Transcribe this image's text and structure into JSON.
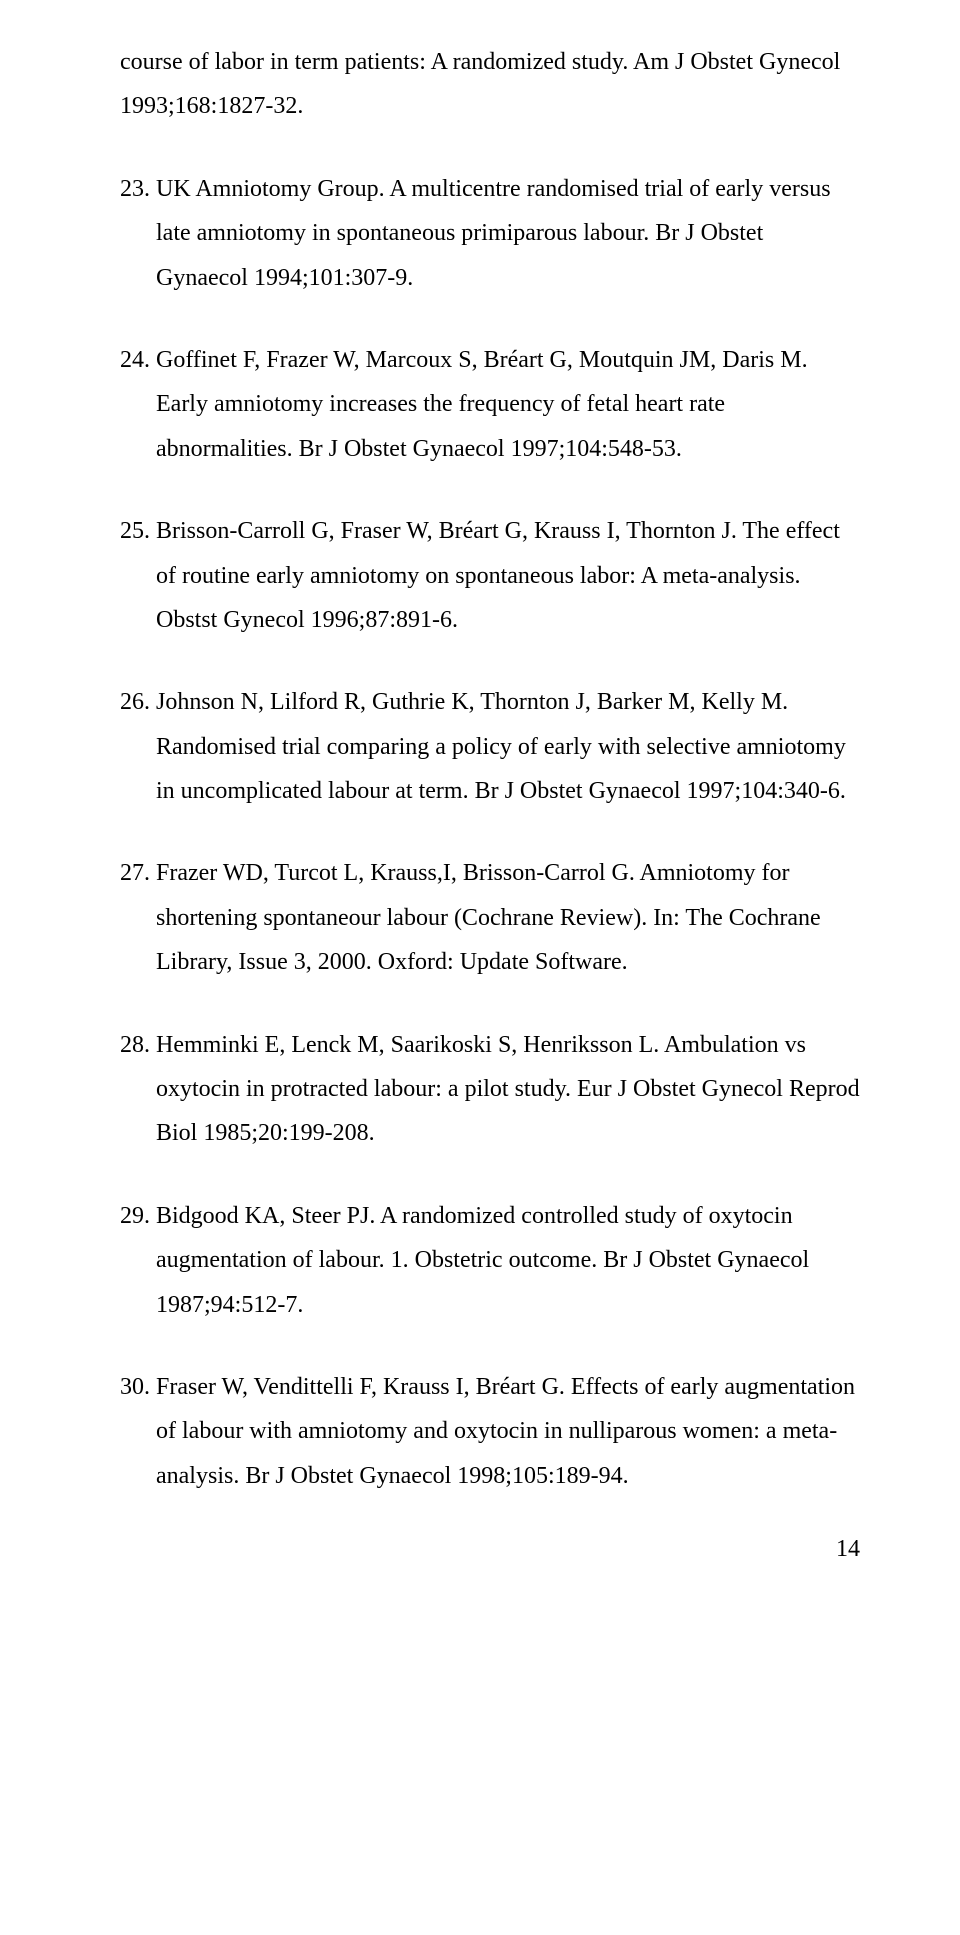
{
  "references": [
    {
      "num": "",
      "text": "course of labor in term patients: A randomized study. Am J Obstet Gynecol 1993;168:1827-32.",
      "continued": true
    },
    {
      "num": "23.",
      "text": "UK Amniotomy Group. A multicentre randomised trial of early versus late amniotomy in spontaneous primiparous labour. Br J Obstet Gynaecol 1994;101:307-9."
    },
    {
      "num": "24.",
      "text": "Goffinet F, Frazer W, Marcoux S, Bréart G, Moutquin JM, Daris M. Early amniotomy increases the frequency of fetal heart rate abnormalities. Br J Obstet Gynaecol 1997;104:548-53."
    },
    {
      "num": "25.",
      "text": "Brisson-Carroll G, Fraser W, Bréart G, Krauss I, Thornton J. The effect of routine early amniotomy on spontaneous labor: A meta-analysis. Obstst Gynecol 1996;87:891-6."
    },
    {
      "num": "26.",
      "text": "Johnson N, Lilford R, Guthrie K, Thornton J, Barker M, Kelly M. Randomised trial comparing a policy of early with selective amniotomy in uncomplicated labour at term. Br J Obstet Gynaecol 1997;104:340-6."
    },
    {
      "num": "27.",
      "text": "Frazer WD, Turcot L, Krauss,I, Brisson-Carrol G. Amniotomy for shortening spontaneour labour (Cochrane Review). In: The Cochrane Library, Issue 3, 2000. Oxford: Update Software."
    },
    {
      "num": "28.",
      "text": "Hemminki E, Lenck M, Saarikoski S, Henriksson L. Ambulation vs oxytocin in protracted labour: a pilot study. Eur J Obstet Gynecol Reprod Biol 1985;20:199-208."
    },
    {
      "num": "29.",
      "text": "Bidgood KA, Steer PJ. A randomized controlled study of oxytocin augmentation of labour. 1. Obstetric outcome. Br J Obstet Gynaecol 1987;94:512-7."
    },
    {
      "num": "30.",
      "text": "Fraser W, Vendittelli F, Krauss I, Bréart G. Effects of early augmentation of labour with amniotomy and oxytocin in nulliparous women: a meta-analysis. Br J Obstet Gynaecol 1998;105:189-94."
    }
  ],
  "page_number": "14"
}
